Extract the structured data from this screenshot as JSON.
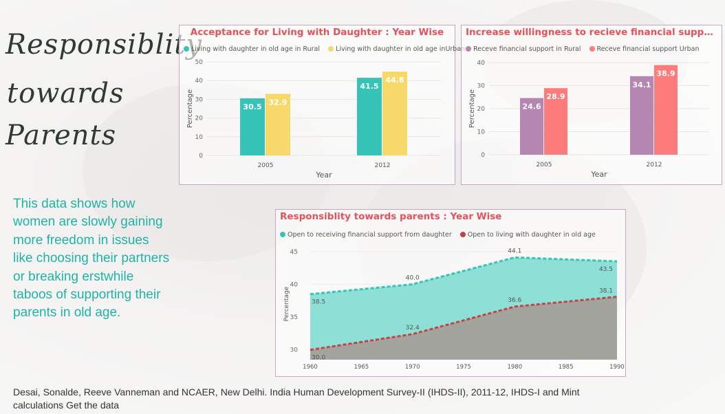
{
  "title": {
    "line1": "Responsiblity",
    "line2": "towards",
    "line3": "Parents"
  },
  "description": "This data shows how women are slowly gaining more freedom in issues like choosing their partners or breaking erstwhile taboos of supporting their parents in old age.",
  "source": "Desai, Sonalde, Reeve Vanneman and NCAER, New Delhi. India Human Development Survey-II (IHDS-II), 2011-12, IHDS-I and Mint calculations Get the data",
  "colors": {
    "teal": "#35c4b7",
    "yellow": "#f7d96b",
    "purple": "#b486b1",
    "salmon": "#fd7c7b",
    "red": "#c0444a",
    "title_red": "#e6515a"
  },
  "chart_data": [
    {
      "type": "bar",
      "title": "Acceptance for Living with Daughter : Year Wise",
      "xlabel": "Year",
      "ylabel": "Percentage",
      "ylim": [
        0,
        50
      ],
      "yticks": [
        0,
        10,
        20,
        30,
        40,
        50
      ],
      "categories": [
        "2005",
        "2012"
      ],
      "series": [
        {
          "name": "Living with daughter in old age in Rural",
          "values": [
            30.5,
            41.5
          ],
          "color": "#35c4b7"
        },
        {
          "name": "Living with daughter in old age inUrban",
          "values": [
            32.9,
            44.8
          ],
          "color": "#f7d96b"
        }
      ]
    },
    {
      "type": "bar",
      "title": "Increase willingness to recieve financial support : Ye...",
      "xlabel": "Year",
      "ylabel": "Percentage",
      "ylim": [
        0,
        40
      ],
      "yticks": [
        0,
        10,
        20,
        30,
        40
      ],
      "categories": [
        "2005",
        "2012"
      ],
      "series": [
        {
          "name": "Receve financial support in Rural",
          "values": [
            24.6,
            34.1
          ],
          "color": "#b486b1"
        },
        {
          "name": "Receve financial support Urban",
          "values": [
            28.9,
            38.9
          ],
          "color": "#fd7c7b"
        }
      ]
    },
    {
      "type": "area",
      "title": "Responsiblity towards parents : Year Wise",
      "xlabel": "",
      "ylabel": "Percentage",
      "xlim": [
        1960,
        1990
      ],
      "ylim": [
        28.5,
        45.5
      ],
      "xticks": [
        1960,
        1965,
        1970,
        1975,
        1980,
        1985,
        1990
      ],
      "yticks": [
        30,
        35,
        40,
        45
      ],
      "x": [
        1960,
        1970,
        1980,
        1990
      ],
      "series": [
        {
          "name": "Open to receiving financial support from daughter",
          "values": [
            38.5,
            40.0,
            44.1,
            43.5
          ],
          "color": "#35c4b7",
          "labels": [
            "38.5",
            "40.0",
            "44.1",
            "43.5"
          ]
        },
        {
          "name": "Open to living with daughter in old age",
          "values": [
            30.0,
            32.4,
            36.6,
            38.1
          ],
          "color": "#c0444a",
          "labels": [
            "30.0",
            "32.4",
            "36.6",
            "38.1"
          ]
        }
      ]
    }
  ]
}
